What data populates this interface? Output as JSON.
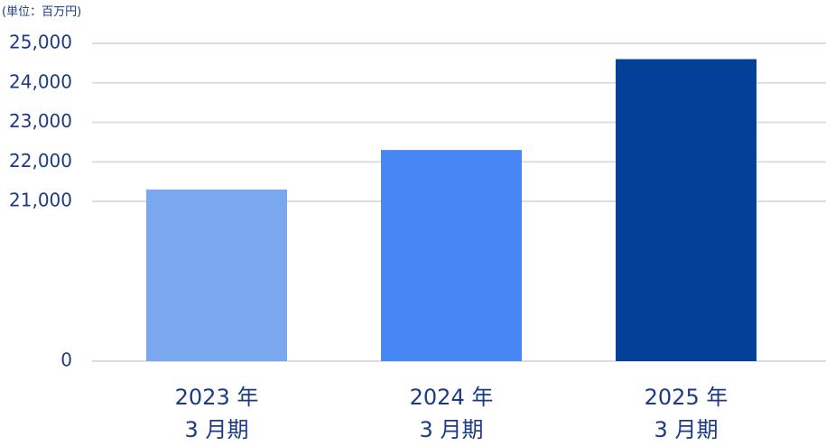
{
  "chart_data": {
    "type": "bar",
    "y_label": "(単位：百万円)",
    "categories": [
      "2023 年\n3 月期",
      "2024 年\n3 月期",
      "2025 年\n3 月期"
    ],
    "values": [
      21300,
      22300,
      24600
    ],
    "colors": [
      "#7aa8ee",
      "#4786f5",
      "#034098"
    ],
    "ylim": [
      0,
      25000
    ],
    "yticks": [
      0,
      {
        "value": 21000,
        "label": "21,000"
      },
      {
        "value": 22000,
        "label": "22,000"
      },
      {
        "value": 23000,
        "label": "23,000"
      },
      {
        "value": 24000,
        "label": "24,000"
      },
      {
        "value": 25000,
        "label": "25,000"
      }
    ],
    "grid": true
  }
}
